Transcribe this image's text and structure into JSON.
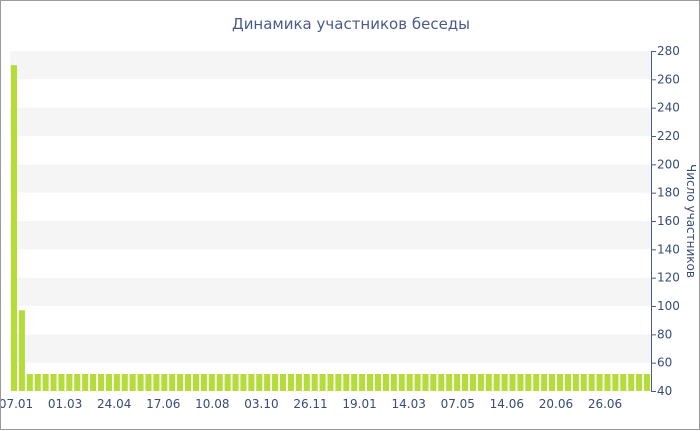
{
  "chart_data": {
    "type": "bar",
    "title": "Динамика участников беседы",
    "xlabel": "",
    "ylabel": "Число участников",
    "ylim": [
      40,
      280
    ],
    "y_ticks": [
      40,
      60,
      80,
      100,
      120,
      140,
      160,
      180,
      200,
      220,
      240,
      260,
      280
    ],
    "y_axis_position": "right",
    "x_tick_labels": [
      "07.01",
      "01.03",
      "24.04",
      "17.06",
      "10.08",
      "03.10",
      "26.11",
      "19.01",
      "14.03",
      "07.05",
      "14.06",
      "20.06",
      "26.06"
    ],
    "grid": "horizontal alternating bands",
    "bar_color": "#b5dc3a",
    "values": [
      270,
      97,
      52,
      52,
      52,
      52,
      52,
      52,
      52,
      52,
      52,
      52,
      52,
      52,
      52,
      52,
      52,
      52,
      52,
      52,
      52,
      52,
      52,
      52,
      52,
      52,
      52,
      52,
      52,
      52,
      52,
      52,
      52,
      52,
      52,
      52,
      52,
      52,
      52,
      52,
      52,
      52,
      52,
      52,
      52,
      52,
      52,
      52,
      52,
      52,
      52,
      52,
      52,
      52,
      52,
      52,
      52,
      52,
      52,
      52,
      52,
      52,
      52,
      52,
      52,
      52,
      52,
      52,
      52,
      52,
      52,
      52,
      52,
      52,
      52,
      52,
      52,
      52,
      52,
      52,
      52
    ]
  }
}
